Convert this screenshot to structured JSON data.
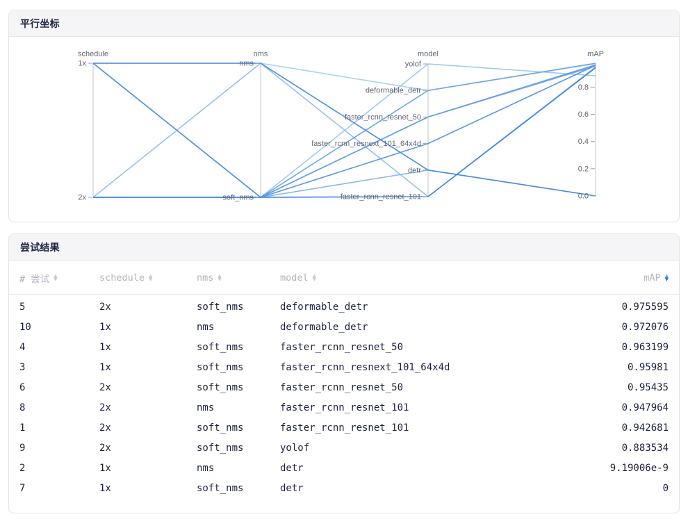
{
  "parallel_card": {
    "title": "平行坐标"
  },
  "trials_card": {
    "title": "尝试结果"
  },
  "colors": {
    "accent_sort_up": "#6aa3f6",
    "accent_sort_down": "#2e6de4",
    "card_header_bg": "#f5f5f7",
    "card_border": "#e4e4e9",
    "header_text": "#b3b4c0",
    "cell_text": "#1c2140",
    "axis_line": "#c4c6ce",
    "plot_label": "#616672"
  },
  "table": {
    "columns": [
      {
        "key": "number",
        "label": "# 尝试",
        "align": "left",
        "sorted": false
      },
      {
        "key": "schedule",
        "label": "schedule",
        "align": "left",
        "sorted": false
      },
      {
        "key": "nms",
        "label": "nms",
        "align": "left",
        "sorted": false
      },
      {
        "key": "model",
        "label": "model",
        "align": "left",
        "sorted": false
      },
      {
        "key": "mAP",
        "label": "mAP",
        "align": "right",
        "sorted": true
      }
    ],
    "rows": [
      {
        "number": "5",
        "schedule": "2x",
        "nms": "soft_nms",
        "model": "deformable_detr",
        "mAP": "0.975595"
      },
      {
        "number": "10",
        "schedule": "1x",
        "nms": "nms",
        "model": "deformable_detr",
        "mAP": "0.972076"
      },
      {
        "number": "4",
        "schedule": "1x",
        "nms": "soft_nms",
        "model": "faster_rcnn_resnet_50",
        "mAP": "0.963199"
      },
      {
        "number": "3",
        "schedule": "1x",
        "nms": "soft_nms",
        "model": "faster_rcnn_resnext_101_64x4d",
        "mAP": "0.95981"
      },
      {
        "number": "6",
        "schedule": "2x",
        "nms": "soft_nms",
        "model": "faster_rcnn_resnet_50",
        "mAP": "0.95435"
      },
      {
        "number": "8",
        "schedule": "2x",
        "nms": "nms",
        "model": "faster_rcnn_resnet_101",
        "mAP": "0.947964"
      },
      {
        "number": "1",
        "schedule": "2x",
        "nms": "soft_nms",
        "model": "faster_rcnn_resnet_101",
        "mAP": "0.942681"
      },
      {
        "number": "9",
        "schedule": "2x",
        "nms": "soft_nms",
        "model": "yolof",
        "mAP": "0.883534"
      },
      {
        "number": "2",
        "schedule": "1x",
        "nms": "nms",
        "model": "detr",
        "mAP": "9.19006e-9"
      },
      {
        "number": "7",
        "schedule": "1x",
        "nms": "soft_nms",
        "model": "detr",
        "mAP": "0"
      }
    ]
  },
  "chart_data": {
    "type": "parallel-coordinates",
    "title": "平行坐标",
    "legend": "none",
    "axes": [
      {
        "name": "schedule",
        "kind": "category",
        "categories": [
          "1x",
          "2x"
        ]
      },
      {
        "name": "nms",
        "kind": "category",
        "categories": [
          "nms",
          "soft_nms"
        ]
      },
      {
        "name": "model",
        "kind": "category",
        "categories": [
          "yolof",
          "deformable_detr",
          "faster_rcnn_resnet_50",
          "faster_rcnn_resnext_101_64x4d",
          "detr",
          "faster_rcnn_resnet_101"
        ]
      },
      {
        "name": "mAP",
        "kind": "numeric",
        "min": 0,
        "max": 0.975595,
        "ticks": [
          0.8,
          0.6,
          0.4,
          0.2,
          0.0
        ],
        "tick_labels": [
          "0.8",
          "0.6",
          "0.4",
          "0.2",
          "0.0"
        ]
      }
    ],
    "trials": [
      {
        "number": 1,
        "schedule": "2x",
        "nms": "soft_nms",
        "model": "faster_rcnn_resnet_101",
        "mAP": 0.942681,
        "color": "#4084e0"
      },
      {
        "number": 2,
        "schedule": "1x",
        "nms": "nms",
        "model": "detr",
        "mAP": 9.19006e-09,
        "color": "#4c8ce2"
      },
      {
        "number": 3,
        "schedule": "1x",
        "nms": "soft_nms",
        "model": "faster_rcnn_resnext_101_64x4d",
        "mAP": 0.95981,
        "color": "#5895e4"
      },
      {
        "number": 4,
        "schedule": "1x",
        "nms": "soft_nms",
        "model": "faster_rcnn_resnet_50",
        "mAP": 0.963199,
        "color": "#649de7"
      },
      {
        "number": 5,
        "schedule": "2x",
        "nms": "soft_nms",
        "model": "deformable_detr",
        "mAP": 0.975595,
        "color": "#70a6e9"
      },
      {
        "number": 6,
        "schedule": "2x",
        "nms": "soft_nms",
        "model": "faster_rcnn_resnet_50",
        "mAP": 0.95435,
        "color": "#7caeeb"
      },
      {
        "number": 7,
        "schedule": "1x",
        "nms": "soft_nms",
        "model": "detr",
        "mAP": 0,
        "color": "#88b7ed"
      },
      {
        "number": 8,
        "schedule": "2x",
        "nms": "nms",
        "model": "faster_rcnn_resnet_101",
        "mAP": 0.947964,
        "color": "#94bff0"
      },
      {
        "number": 9,
        "schedule": "2x",
        "nms": "soft_nms",
        "model": "yolof",
        "mAP": 0.883534,
        "color": "#a0c8f2"
      },
      {
        "number": 10,
        "schedule": "1x",
        "nms": "nms",
        "model": "deformable_detr",
        "mAP": 0.972076,
        "color": "#acd0f4"
      }
    ]
  }
}
